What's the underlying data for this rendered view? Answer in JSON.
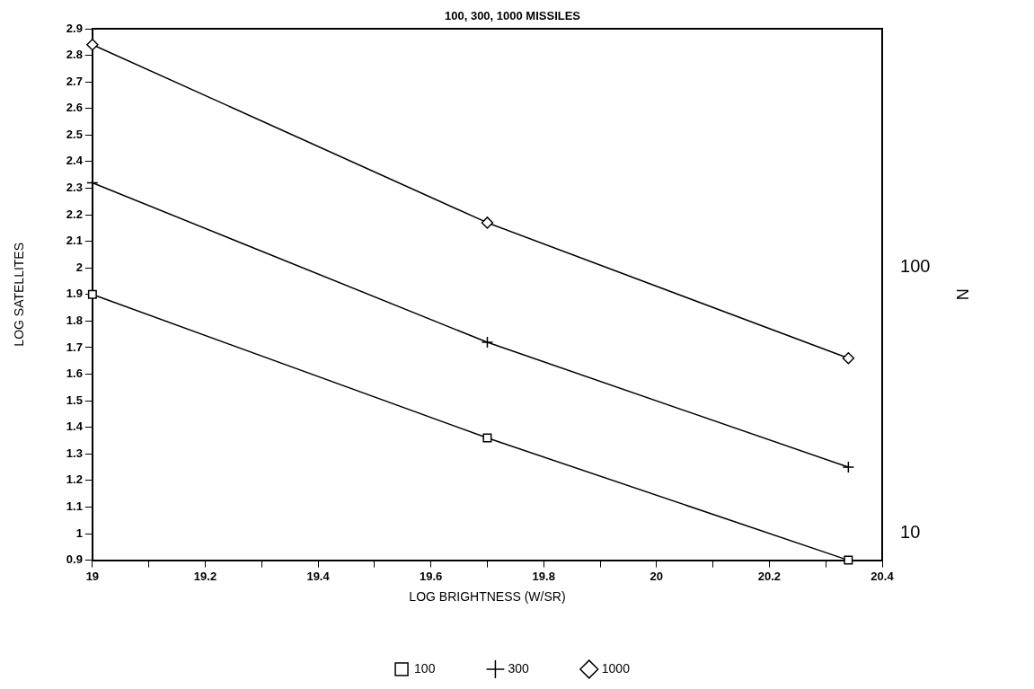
{
  "chart_data": {
    "type": "line",
    "title": "100, 300, 1000 MISSILES",
    "xlabel": "LOG BRIGHTNESS (W/SR)",
    "ylabel": "LOG SATELLITES",
    "y2label": "N",
    "x": [
      19,
      19.7,
      20.34
    ],
    "series": [
      {
        "name": "100",
        "color": "#000000",
        "marker": "square",
        "values": [
          1.9,
          1.36,
          0.9
        ]
      },
      {
        "name": "300",
        "color": "#000000",
        "marker": "cross",
        "values": [
          2.32,
          1.72,
          1.25
        ]
      },
      {
        "name": "1000",
        "color": "#000000",
        "marker": "diamond",
        "values": [
          2.84,
          2.17,
          1.66
        ]
      }
    ],
    "xlim": [
      19,
      20.4
    ],
    "xticks": [
      19,
      {
        "value": 19.1,
        "label": null
      },
      19.2,
      {
        "value": 19.3,
        "label": null
      },
      19.4,
      {
        "value": 19.5,
        "label": null
      },
      19.6,
      {
        "value": 19.7,
        "label": null
      },
      19.8,
      {
        "value": 19.9,
        "label": null
      },
      20,
      {
        "value": 20.1,
        "label": null
      },
      20.2,
      {
        "value": 20.3,
        "label": null
      },
      20.4
    ],
    "ylim": [
      0.9,
      2.9
    ],
    "yticks": [
      0.9,
      1,
      1.1,
      1.2,
      1.3,
      1.4,
      1.5,
      1.6,
      1.7,
      1.8,
      1.9,
      2,
      2.1,
      2.2,
      2.3,
      2.4,
      2.5,
      2.6,
      2.7,
      2.8,
      2.9
    ],
    "y2lim": [
      7.9,
      794
    ],
    "y2ticks": [
      10,
      100
    ],
    "log": "y2",
    "grid": false,
    "legend": "bottom",
    "line_style": "solid"
  }
}
